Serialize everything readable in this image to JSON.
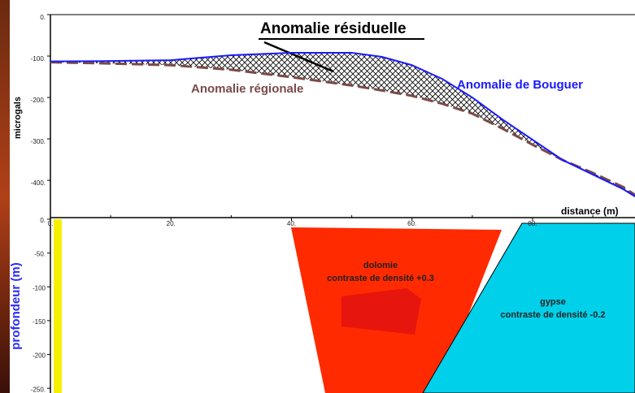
{
  "chart_data": [
    {
      "type": "line",
      "title": "Anomalie résiduelle",
      "ylabel": "microgals",
      "xlabel": "distance (m)",
      "x": [
        0,
        10,
        20,
        30,
        40,
        50,
        55,
        60,
        65,
        70,
        75,
        80,
        85,
        90,
        95,
        97
      ],
      "series": [
        {
          "name": "Anomalie de Bouguer",
          "color": "#1a1aff",
          "style": "solid",
          "values": [
            -113,
            -112,
            -110,
            -98,
            -92,
            -92,
            -102,
            -122,
            -155,
            -200,
            -253,
            -302,
            -351,
            -386,
            -421,
            -439
          ]
        },
        {
          "name": "Anomalie régionale",
          "color": "#7a4a48",
          "style": "dashed",
          "values": [
            -115,
            -118,
            -122,
            -133,
            -151,
            -171,
            -183,
            -196,
            -215,
            -239,
            -275,
            -314,
            -351,
            -382,
            -416,
            -435
          ]
        }
      ],
      "hatch": true,
      "xlim": [
        0,
        97
      ],
      "ylim": [
        -490,
        0
      ],
      "xticks": [
        {
          "value": 0,
          "label": "0."
        },
        {
          "value": 20,
          "label": "20."
        },
        {
          "value": 40,
          "label": "40."
        },
        {
          "value": 60,
          "label": "60."
        },
        {
          "value": 80,
          "label": "80."
        }
      ],
      "yticks": [
        {
          "value": 0,
          "label": "0."
        },
        {
          "value": -100,
          "label": "-100."
        },
        {
          "value": -200,
          "label": "-200."
        },
        {
          "value": -300,
          "label": "-300."
        },
        {
          "value": -400,
          "label": "-400."
        }
      ]
    },
    {
      "type": "section",
      "ylabel": "profondeur (m)",
      "ylim": [
        -257,
        0
      ],
      "yticks": [
        {
          "value": 0,
          "label": "0."
        },
        {
          "value": -50,
          "label": "-50."
        },
        {
          "value": -100,
          "label": "-100"
        },
        {
          "value": -150,
          "label": "-150"
        },
        {
          "value": -200,
          "label": "-200"
        },
        {
          "value": -250,
          "label": "-250."
        }
      ],
      "bodies": [
        {
          "name": "dolomie",
          "label": "contraste de densité +0.3",
          "color": "#ff2a00"
        },
        {
          "name": "gypse",
          "label": "contraste de densité -0.2",
          "color": "#00d0ea"
        }
      ]
    }
  ]
}
